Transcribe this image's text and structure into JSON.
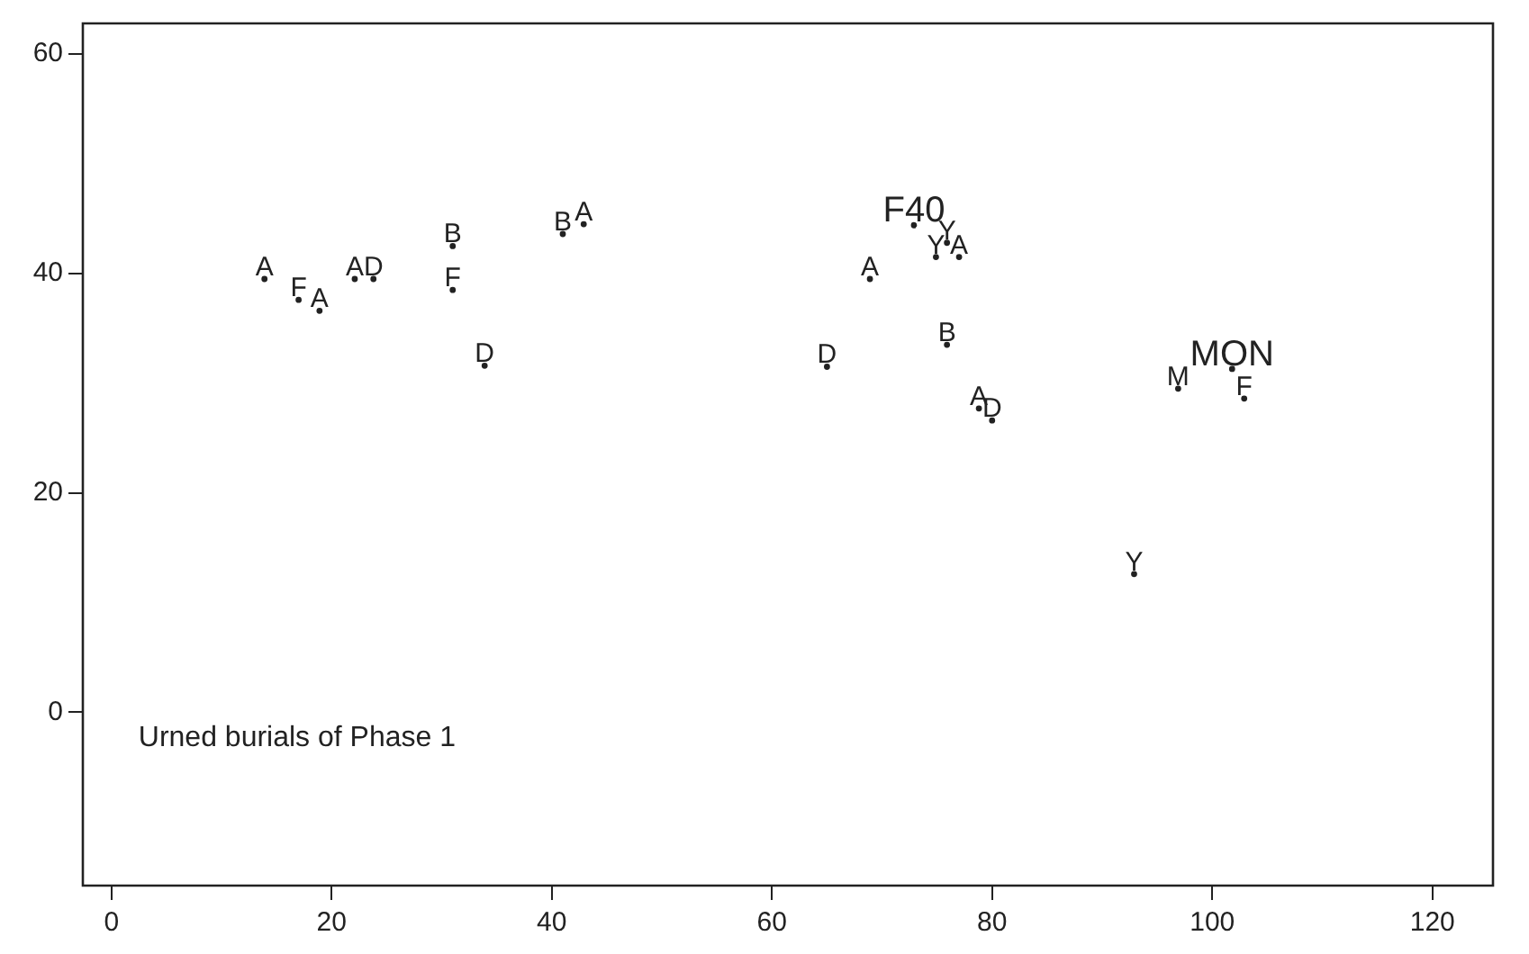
{
  "chart_data": {
    "type": "scatter",
    "x": [
      13.9,
      17.0,
      18.9,
      22.1,
      23.8,
      31.0,
      31.0,
      33.9,
      41.0,
      42.9,
      75.9,
      74.9,
      77.0,
      68.9,
      75.9,
      65.0,
      78.8,
      80.0,
      96.9,
      102.9,
      92.9
    ],
    "series": [
      {
        "color": "#222222",
        "values": [
          39.5,
          37.6,
          36.6,
          39.5,
          39.5,
          42.5,
          38.5,
          31.6,
          43.6,
          44.5,
          42.8,
          41.5,
          41.5,
          39.5,
          33.5,
          31.5,
          27.7,
          26.6,
          29.5,
          28.6,
          12.6
        ],
        "value_labels": [
          "A",
          "F",
          "A",
          "A",
          "D",
          "B",
          "F",
          "D",
          "B",
          "A",
          "Y",
          "Y",
          "A",
          "A",
          "B",
          "D",
          "A",
          "D",
          "M",
          "F",
          "Y"
        ]
      },
      {
        "color": "#222222",
        "x": [
          72.9,
          101.8
        ],
        "values": [
          44.4,
          31.3
        ],
        "value_labels": [
          "F40",
          "MON"
        ]
      }
    ],
    "marker": "circle",
    "annotations": [
      "Urned burials of Phase 1"
    ],
    "xlim": [
      -2.6,
      125.5
    ],
    "ylim": [
      -15.8,
      62.8
    ],
    "xticks": [
      0,
      20,
      40,
      60,
      80,
      100,
      120
    ],
    "yticks": [
      0,
      20,
      40,
      60
    ],
    "grid": false,
    "legend": false
  }
}
